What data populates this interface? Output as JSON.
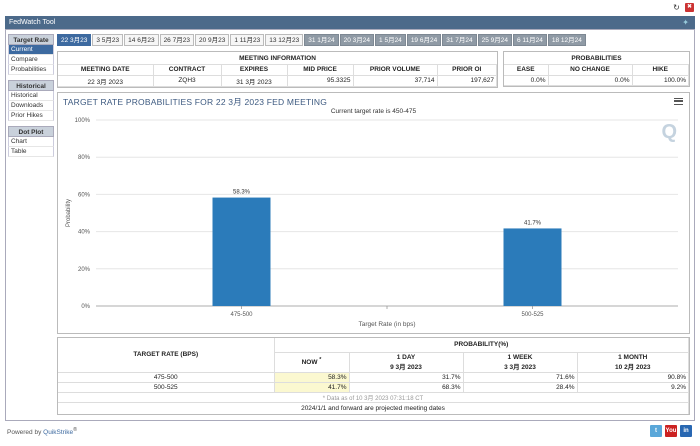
{
  "window": {
    "title": "FedWatch Tool"
  },
  "topicons": {
    "refresh": "↻",
    "close": "✖"
  },
  "sidebar": {
    "target_rate": {
      "head": "Target Rate",
      "items": [
        "Current",
        "Compare",
        "Probabilities"
      ]
    },
    "historical": {
      "head": "Historical",
      "items": [
        "Historical",
        "Downloads",
        "Prior Hikes"
      ]
    },
    "dot_plot": {
      "head": "Dot Plot",
      "items": [
        "Chart",
        "Table"
      ]
    }
  },
  "tabs": [
    {
      "label": "22 3月23",
      "state": "active"
    },
    {
      "label": "3 5月23",
      "state": "normal"
    },
    {
      "label": "14 6月23",
      "state": "normal"
    },
    {
      "label": "26 7月23",
      "state": "normal"
    },
    {
      "label": "20 9月23",
      "state": "normal"
    },
    {
      "label": "1 11月23",
      "state": "normal"
    },
    {
      "label": "13 12月23",
      "state": "normal"
    },
    {
      "label": "31 1月24",
      "state": "proj"
    },
    {
      "label": "20 3月24",
      "state": "proj"
    },
    {
      "label": "1 5月24",
      "state": "proj"
    },
    {
      "label": "19 6月24",
      "state": "proj"
    },
    {
      "label": "31 7月24",
      "state": "proj"
    },
    {
      "label": "25 9月24",
      "state": "proj"
    },
    {
      "label": "6 11月24",
      "state": "proj"
    },
    {
      "label": "18 12月24",
      "state": "proj"
    }
  ],
  "meeting_info": {
    "title": "MEETING INFORMATION",
    "headers": [
      "MEETING DATE",
      "CONTRACT",
      "EXPIRES",
      "MID PRICE",
      "PRIOR VOLUME",
      "PRIOR OI"
    ],
    "row": [
      "22 3月 2023",
      "ZQH3",
      "31 3月 2023",
      "95.3325",
      "37,714",
      "197,627"
    ]
  },
  "probabilities": {
    "title": "PROBABILITIES",
    "headers": [
      "EASE",
      "NO CHANGE",
      "HIKE"
    ],
    "row": [
      "0.0%",
      "0.0%",
      "100.0%"
    ]
  },
  "chart": {
    "title": "TARGET RATE PROBABILITIES FOR 22 3月 2023 FED MEETING",
    "subtitle": "Current target rate is 450-475",
    "logo": "Q"
  },
  "chart_data": {
    "type": "bar",
    "categories": [
      "475-500",
      "500-525"
    ],
    "values": [
      58.3,
      41.7
    ],
    "data_labels": [
      "58.3%",
      "41.7%"
    ],
    "title": "TARGET RATE PROBABILITIES FOR 22 3月 2023 FED MEETING",
    "xlabel": "Target Rate (in bps)",
    "ylabel": "Probability",
    "ylim": [
      0,
      100
    ],
    "yticks": [
      "0%",
      "20%",
      "40%",
      "60%",
      "80%",
      "100%"
    ],
    "bar_color": "#2b7bba"
  },
  "lower_table": {
    "head_target": "TARGET RATE (BPS)",
    "head_prob": "PROBABILITY(%)",
    "cols": [
      {
        "l1": "NOW",
        "sup": "*",
        "l2": ""
      },
      {
        "l1": "1 DAY",
        "l2": "9 3月 2023"
      },
      {
        "l1": "1 WEEK",
        "l2": "3 3月 2023"
      },
      {
        "l1": "1 MONTH",
        "l2": "10 2月 2023"
      }
    ],
    "rows": [
      {
        "rate": "475-500",
        "vals": [
          "58.3%",
          "31.7%",
          "71.6%",
          "90.8%"
        ]
      },
      {
        "rate": "500-525",
        "vals": [
          "41.7%",
          "68.3%",
          "28.4%",
          "9.2%"
        ]
      }
    ],
    "note": "* Data as of 10 3月 2023 07:31:18 CT",
    "projected_note": "2024/1/1 and forward are projected meeting dates"
  },
  "footer": {
    "powered_by": "Powered by",
    "brand": "QuikStrike",
    "reg": "®"
  },
  "social": [
    {
      "name": "twitter",
      "text": "t",
      "color": "#5aa7d9"
    },
    {
      "name": "youtube",
      "text": "You",
      "color": "#cc2222"
    },
    {
      "name": "linkedin",
      "text": "in",
      "color": "#2867b2"
    }
  ]
}
